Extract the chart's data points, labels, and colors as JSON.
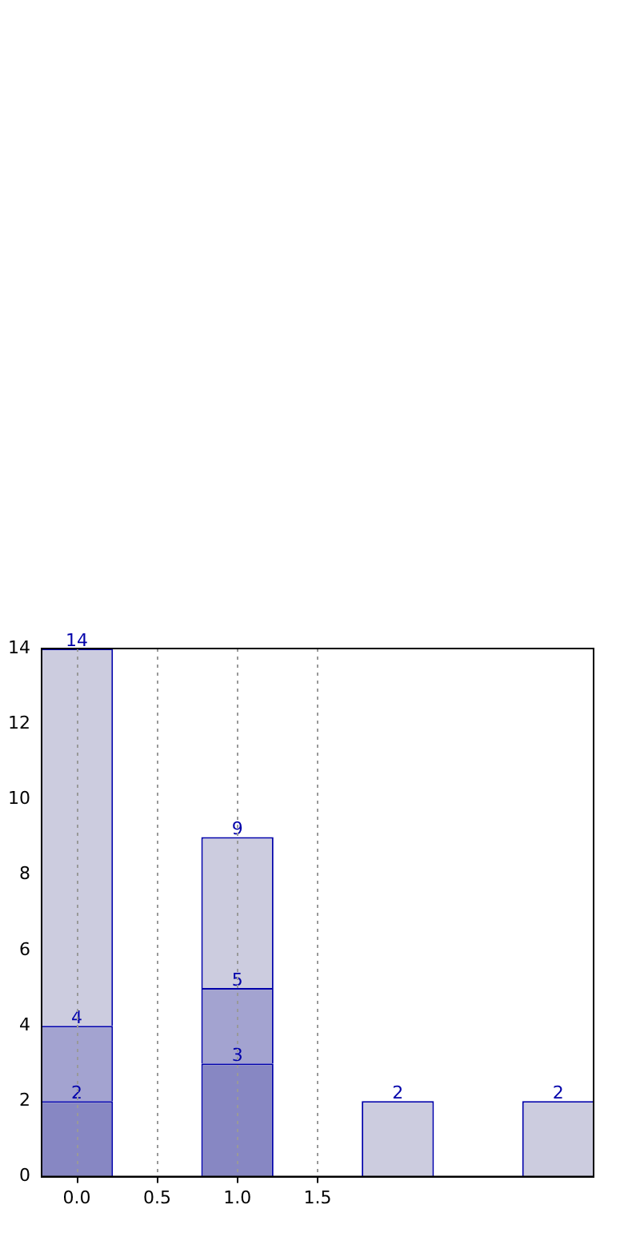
{
  "chart_data": {
    "type": "bar",
    "x": [
      0,
      1,
      2,
      3
    ],
    "stacked": true,
    "series": [
      {
        "color": "#8787c3",
        "values": [
          2,
          3,
          null,
          null
        ]
      },
      {
        "color": "#a3a3d0",
        "values": [
          2,
          2,
          null,
          null
        ]
      },
      {
        "color": "#ccccdf",
        "values": [
          10,
          4,
          2,
          2
        ]
      }
    ],
    "annotations": [
      {
        "text": "2",
        "x": 0,
        "y": 2
      },
      {
        "text": "4",
        "x": 0,
        "y": 4
      },
      {
        "text": "14",
        "x": 0,
        "y": 14
      },
      {
        "text": "3",
        "x": 1,
        "y": 3
      },
      {
        "text": "5",
        "x": 1,
        "y": 5
      },
      {
        "text": "9",
        "x": 1,
        "y": 9
      },
      {
        "text": "2",
        "x": 2,
        "y": 2
      },
      {
        "text": "2",
        "x": 3,
        "y": 2
      }
    ],
    "xlim": [
      -0.22,
      3.22
    ],
    "xticks": [
      {
        "value": 0,
        "label": "0.0"
      },
      {
        "value": 0.5,
        "label": "0.5"
      },
      {
        "value": 1,
        "label": "1.0"
      },
      {
        "value": 1.5,
        "label": "1.5"
      }
    ],
    "ylim": [
      0,
      14
    ],
    "yticks": [
      0,
      2,
      4,
      6,
      8,
      10,
      12,
      14
    ],
    "grid": "x",
    "legend": false
  }
}
